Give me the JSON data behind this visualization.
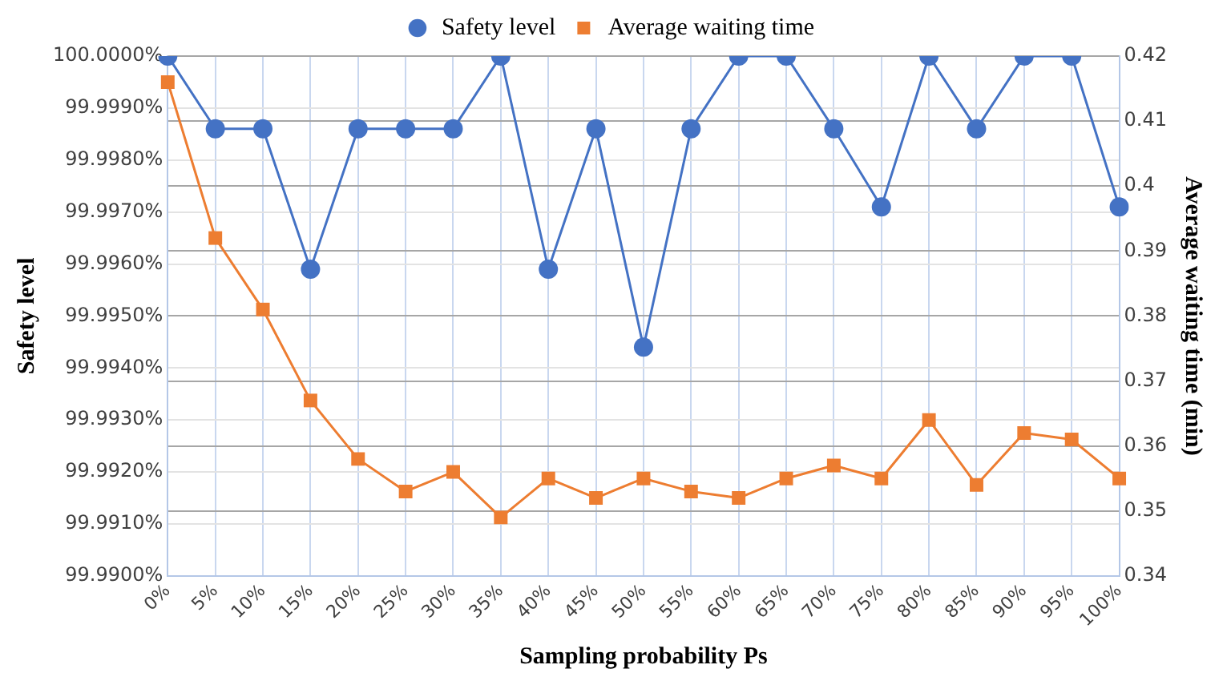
{
  "chart_data": {
    "type": "line",
    "xlabel": "Sampling probability Ps",
    "ylabel": "Safety level",
    "y2label": "Average waiting time (min)",
    "categories": [
      "0%",
      "5%",
      "10%",
      "15%",
      "20%",
      "25%",
      "30%",
      "35%",
      "40%",
      "45%",
      "50%",
      "55%",
      "60%",
      "65%",
      "70%",
      "75%",
      "80%",
      "85%",
      "90%",
      "95%",
      "100%"
    ],
    "series": [
      {
        "name": "Safety level",
        "color": "#4472c4",
        "marker": "circle",
        "values": [
          100.0,
          99.9986,
          99.9986,
          99.9959,
          99.9986,
          99.9986,
          99.9986,
          100.0,
          99.9959,
          99.9986,
          99.9944,
          99.9986,
          100.0,
          100.0,
          99.9986,
          99.9971,
          100.0,
          99.9986,
          100.0,
          100.0,
          99.9971
        ]
      },
      {
        "name": "Average waiting time",
        "color": "#ed7d31",
        "marker": "square",
        "axis": "y2",
        "values": [
          0.416,
          0.392,
          0.381,
          0.367,
          0.358,
          0.353,
          0.356,
          0.349,
          0.355,
          0.352,
          0.355,
          0.353,
          0.352,
          0.355,
          0.357,
          0.355,
          0.364,
          0.354,
          0.362,
          0.361,
          0.355
        ]
      }
    ],
    "ylim": [
      99.99,
      100.0
    ],
    "yticks": [
      {
        "value": 99.99,
        "label": "99.9900%"
      },
      {
        "value": 99.991,
        "label": "99.9910%"
      },
      {
        "value": 99.992,
        "label": "99.9920%"
      },
      {
        "value": 99.993,
        "label": "99.9930%"
      },
      {
        "value": 99.994,
        "label": "99.9940%"
      },
      {
        "value": 99.995,
        "label": "99.9950%"
      },
      {
        "value": 99.996,
        "label": "99.9960%"
      },
      {
        "value": 99.997,
        "label": "99.9970%"
      },
      {
        "value": 99.998,
        "label": "99.9980%"
      },
      {
        "value": 99.999,
        "label": "99.9990%"
      },
      {
        "value": 100.0,
        "label": "100.0000%"
      }
    ],
    "y2lim": [
      0.34,
      0.42
    ],
    "y2ticks": [
      0.34,
      0.35,
      0.36,
      0.37,
      0.38,
      0.39,
      {
        "value": 0.4,
        "label": "0.4"
      },
      0.41,
      0.42
    ],
    "grid": true,
    "legend": "top",
    "line_style": "solid"
  }
}
